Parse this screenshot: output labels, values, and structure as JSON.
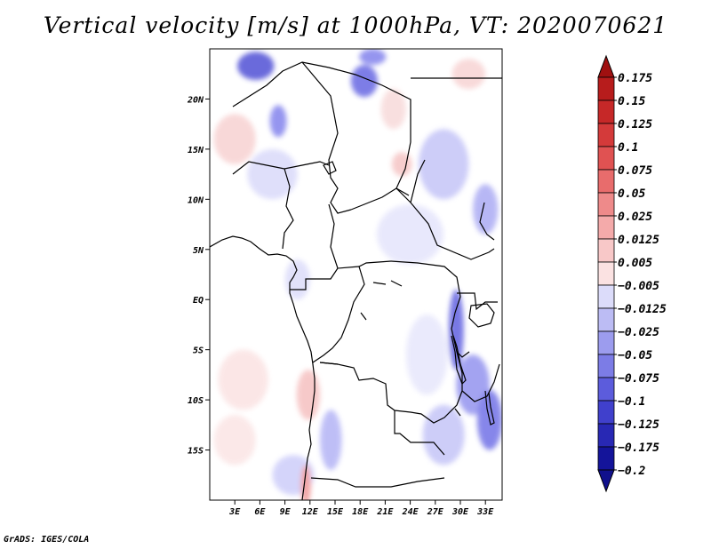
{
  "title": "Vertical velocity [m/s] at 1000hPa, VT: 2020070621",
  "credit": "GrADS: IGES/COLA",
  "map": {
    "lon_range": [
      0,
      35
    ],
    "lat_range": [
      -20,
      25
    ],
    "lat_ticks": [
      {
        "value": 20,
        "label": "20N"
      },
      {
        "value": 15,
        "label": "15N"
      },
      {
        "value": 10,
        "label": "10N"
      },
      {
        "value": 5,
        "label": "5N"
      },
      {
        "value": 0,
        "label": "EQ"
      },
      {
        "value": -5,
        "label": "5S"
      },
      {
        "value": -10,
        "label": "10S"
      },
      {
        "value": -15,
        "label": "15S"
      }
    ],
    "lon_ticks": [
      {
        "value": 3,
        "label": "3E"
      },
      {
        "value": 6,
        "label": "6E"
      },
      {
        "value": 9,
        "label": "9E"
      },
      {
        "value": 12,
        "label": "12E"
      },
      {
        "value": 15,
        "label": "15E"
      },
      {
        "value": 18,
        "label": "18E"
      },
      {
        "value": 21,
        "label": "21E"
      },
      {
        "value": 24,
        "label": "24E"
      },
      {
        "value": 27,
        "label": "27E"
      },
      {
        "value": 30,
        "label": "30E"
      },
      {
        "value": 33,
        "label": "33E"
      }
    ],
    "field_patches": [
      {
        "lon": 5.5,
        "lat": 23.3,
        "rlon": 2.2,
        "rlat": 1.4,
        "color": "#5a5ad8"
      },
      {
        "lon": 8.2,
        "lat": 17.8,
        "rlon": 1.0,
        "rlat": 1.6,
        "color": "#8a8aee"
      },
      {
        "lon": 18.5,
        "lat": 21.8,
        "rlon": 1.6,
        "rlat": 1.6,
        "color": "#7070e4"
      },
      {
        "lon": 19.5,
        "lat": 24.2,
        "rlon": 1.6,
        "rlat": 0.8,
        "color": "#8a8aee"
      },
      {
        "lon": 28.0,
        "lat": 13.5,
        "rlon": 3.0,
        "rlat": 3.5,
        "color": "#c8c8f8"
      },
      {
        "lon": 33.0,
        "lat": 9.0,
        "rlon": 1.5,
        "rlat": 2.5,
        "color": "#b0b0f4"
      },
      {
        "lon": 29.5,
        "lat": -3.0,
        "rlon": 0.9,
        "rlat": 4.0,
        "color": "#6a6ae2"
      },
      {
        "lon": 31.5,
        "lat": -8.5,
        "rlon": 2.0,
        "rlat": 3.0,
        "color": "#9a9af0"
      },
      {
        "lon": 33.5,
        "lat": -12.0,
        "rlon": 1.5,
        "rlat": 3.0,
        "color": "#7a7ae8"
      },
      {
        "lon": 28.0,
        "lat": -13.5,
        "rlon": 2.5,
        "rlat": 3.0,
        "color": "#c8c8f8"
      },
      {
        "lon": 14.5,
        "lat": -14.0,
        "rlon": 1.3,
        "rlat": 3.0,
        "color": "#b8b8f6"
      },
      {
        "lon": 10.0,
        "lat": -17.5,
        "rlon": 2.5,
        "rlat": 2.0,
        "color": "#d0d0fa"
      },
      {
        "lon": 11.8,
        "lat": -9.5,
        "rlon": 1.4,
        "rlat": 2.5,
        "color": "#f6c4c4"
      },
      {
        "lon": 11.5,
        "lat": -18.5,
        "rlon": 0.6,
        "rlat": 2.0,
        "color": "#f09c9c"
      },
      {
        "lon": 3.0,
        "lat": 16.0,
        "rlon": 2.5,
        "rlat": 2.5,
        "color": "#f8d4d4"
      },
      {
        "lon": 22.0,
        "lat": 19.0,
        "rlon": 1.5,
        "rlat": 2.0,
        "color": "#f8dcdc"
      },
      {
        "lon": 23.0,
        "lat": 13.5,
        "rlon": 1.2,
        "rlat": 1.2,
        "color": "#f6c8c8"
      },
      {
        "lon": 4.0,
        "lat": -8.0,
        "rlon": 3.0,
        "rlat": 3.0,
        "color": "#fbe4e4"
      },
      {
        "lon": 3.0,
        "lat": -14.0,
        "rlon": 2.5,
        "rlat": 2.5,
        "color": "#fbe6e6"
      },
      {
        "lon": 24.0,
        "lat": 6.5,
        "rlon": 4.0,
        "rlat": 3.0,
        "color": "#e6e6fc"
      },
      {
        "lon": 7.5,
        "lat": 12.5,
        "rlon": 3.0,
        "rlat": 2.5,
        "color": "#dcdcfa"
      },
      {
        "lon": 26.0,
        "lat": -5.5,
        "rlon": 2.5,
        "rlat": 4.0,
        "color": "#e8e8fc"
      },
      {
        "lon": 10.5,
        "lat": 2.0,
        "rlon": 1.5,
        "rlat": 2.0,
        "color": "#dedefa"
      },
      {
        "lon": 31.0,
        "lat": 22.5,
        "rlon": 2.0,
        "rlat": 1.5,
        "color": "#f8d6d6"
      }
    ]
  },
  "colorbar": {
    "levels": [
      {
        "label": "0.175",
        "color": "#b71c1c"
      },
      {
        "label": "0.15",
        "color": "#c62828"
      },
      {
        "label": "0.125",
        "color": "#d43a3a"
      },
      {
        "label": "0.1",
        "color": "#e05252"
      },
      {
        "label": "0.075",
        "color": "#e86c6c"
      },
      {
        "label": "0.05",
        "color": "#ee8a8a"
      },
      {
        "label": "0.025",
        "color": "#f4aaaa"
      },
      {
        "label": "0.0125",
        "color": "#f8c8c8"
      },
      {
        "label": "0.005",
        "color": "#fbe2e2"
      },
      {
        "label": "−0.005",
        "color": "#ffffff"
      },
      {
        "label": "−0.0125",
        "color": "#dcdcfa"
      },
      {
        "label": "−0.025",
        "color": "#bcbcf4"
      },
      {
        "label": "−0.05",
        "color": "#9c9cee"
      },
      {
        "label": "−0.075",
        "color": "#7c7ce6"
      },
      {
        "label": "−0.1",
        "color": "#5c5cdc"
      },
      {
        "label": "−0.125",
        "color": "#4040cc"
      },
      {
        "label": "−0.175",
        "color": "#2828b4"
      },
      {
        "label": "−0.2",
        "color": "#14149a"
      }
    ],
    "top_color": "#a01010",
    "bottom_color": "#10108c"
  }
}
